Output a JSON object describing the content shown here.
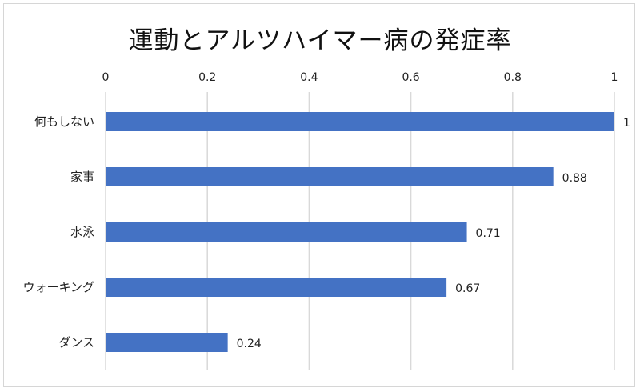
{
  "chart_data": {
    "type": "bar",
    "orientation": "horizontal",
    "title": "運動とアルツハイマー病の発症率",
    "categories": [
      "何もしない",
      "家事",
      "水泳",
      "ウォーキング",
      "ダンス"
    ],
    "values": [
      1,
      0.88,
      0.71,
      0.67,
      0.24
    ],
    "value_labels": [
      "1",
      "0.88",
      "0.71",
      "0.67",
      "0.24"
    ],
    "xlim": [
      0,
      1
    ],
    "x_ticks": [
      "0",
      "0.2",
      "0.4",
      "0.6",
      "0.8",
      "1"
    ],
    "x_axis_position": "top",
    "grid": true,
    "bar_color": "#4472c4",
    "grid_color": "#d9d9d9"
  }
}
